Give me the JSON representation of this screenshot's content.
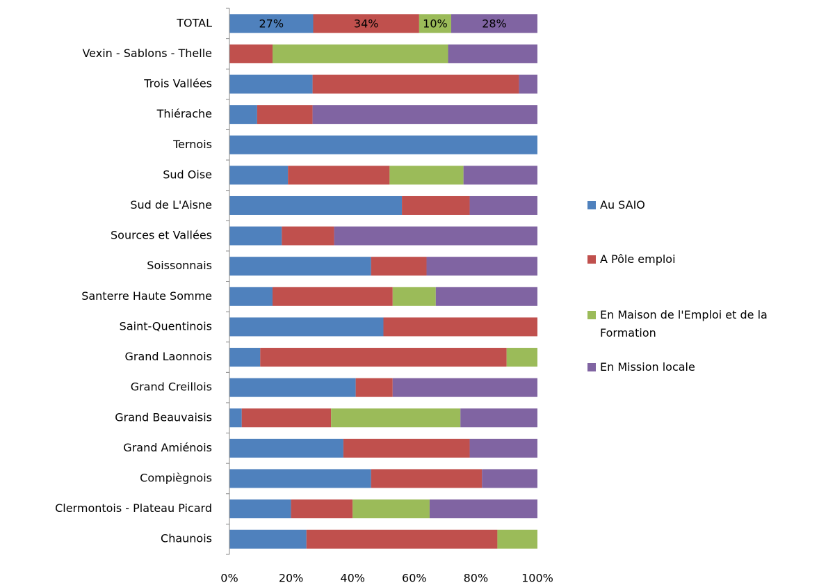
{
  "chart_data": {
    "type": "stacked-bar-horizontal",
    "categories": [
      "TOTAL",
      "Vexin - Sablons - Thelle",
      "Trois Vallées",
      "Thiérache",
      "Ternois",
      "Sud Oise",
      "Sud de L'Aisne",
      "Sources et Vallées",
      "Soissonnais",
      "Santerre Haute Somme",
      "Saint-Quentinois",
      "Grand Laonnois",
      "Grand Creillois",
      "Grand Beauvaisis",
      "Grand Amiénois",
      "Compiègnois",
      "Clermontois - Plateau Picard",
      "Chaunois"
    ],
    "series": [
      {
        "name": "Au SAIO",
        "color": "#4f81bd",
        "values": [
          27.2,
          0,
          27,
          9,
          100,
          19,
          56,
          17,
          46,
          14,
          50,
          10,
          41,
          4,
          37,
          46,
          20,
          25
        ],
        "value_labels": [
          "27%",
          null,
          null,
          null,
          null,
          null,
          null,
          null,
          null,
          null,
          null,
          null,
          null,
          null,
          null,
          null,
          null,
          null
        ]
      },
      {
        "name": "A Pôle emploi",
        "color": "#c0504d",
        "values": [
          34.4,
          14,
          67,
          18,
          0,
          33,
          22,
          17,
          18,
          39,
          50,
          80,
          12,
          29,
          41,
          36,
          20,
          62
        ],
        "value_labels": [
          "34%",
          null,
          null,
          null,
          null,
          null,
          null,
          null,
          null,
          null,
          null,
          null,
          null,
          null,
          null,
          null,
          null,
          null
        ]
      },
      {
        "name": "En Maison de l'Emploi et de la Formation",
        "color": "#9bbb59",
        "values": [
          10.4,
          57,
          0,
          0,
          0,
          24,
          0,
          0,
          0,
          14,
          0,
          10,
          0,
          42,
          0,
          0,
          25,
          13
        ],
        "value_labels": [
          "10%",
          null,
          null,
          null,
          null,
          null,
          null,
          null,
          null,
          null,
          null,
          null,
          null,
          null,
          null,
          null,
          null,
          null
        ]
      },
      {
        "name": "En Mission locale",
        "color": "#8064a2",
        "values": [
          28,
          29,
          6,
          73,
          0,
          24,
          22,
          66,
          36,
          33,
          0,
          0,
          47,
          25,
          22,
          18,
          35,
          0
        ],
        "value_labels": [
          "28%",
          null,
          null,
          null,
          null,
          null,
          null,
          null,
          null,
          null,
          null,
          null,
          null,
          null,
          null,
          null,
          null,
          null
        ]
      }
    ],
    "xlim": [
      0,
      100
    ],
    "xticks": [
      {
        "value": 0,
        "label": "0%"
      },
      {
        "value": 20,
        "label": "20%"
      },
      {
        "value": 40,
        "label": "40%"
      },
      {
        "value": 60,
        "label": "60%"
      },
      {
        "value": 80,
        "label": "80%"
      },
      {
        "value": 100,
        "label": "100%"
      }
    ],
    "legend": "right"
  }
}
